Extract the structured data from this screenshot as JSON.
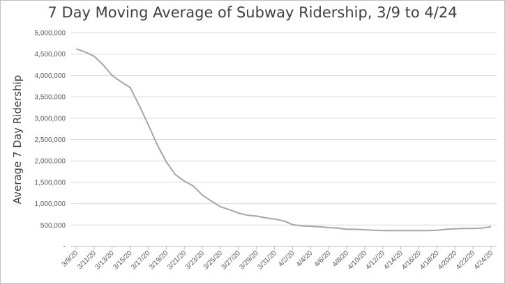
{
  "chart_data": {
    "type": "line",
    "title": "7 Day Moving Average of Subway Ridership, 3/9 to 4/24",
    "xlabel": "",
    "ylabel": "Average 7 Day Ridership",
    "ylim": [
      0,
      5000000
    ],
    "yticks": [
      0,
      500000,
      1000000,
      1500000,
      2000000,
      2500000,
      3000000,
      3500000,
      4000000,
      4500000,
      5000000
    ],
    "ytick_labels": [
      "-",
      "500,000",
      "1,000,000",
      "1,500,000",
      "2,000,000",
      "2,500,000",
      "3,000,000",
      "3,500,000",
      "4,000,000",
      "4,500,000",
      "5,000,000"
    ],
    "grid": true,
    "legend": "none",
    "line_color": "#a5a5a5",
    "x": [
      "3/9/20",
      "3/10/20",
      "3/11/20",
      "3/12/20",
      "3/13/20",
      "3/14/20",
      "3/15/20",
      "3/16/20",
      "3/17/20",
      "3/18/20",
      "3/19/20",
      "3/20/20",
      "3/21/20",
      "3/22/20",
      "3/23/20",
      "3/24/20",
      "3/25/20",
      "3/26/20",
      "3/27/20",
      "3/28/20",
      "3/29/20",
      "3/30/20",
      "3/31/20",
      "4/1/20",
      "4/2/20",
      "4/3/20",
      "4/4/20",
      "4/5/20",
      "4/6/20",
      "4/7/20",
      "4/8/20",
      "4/9/20",
      "4/10/20",
      "4/11/20",
      "4/12/20",
      "4/13/20",
      "4/14/20",
      "4/15/20",
      "4/16/20",
      "4/17/20",
      "4/18/20",
      "4/19/20",
      "4/20/20",
      "4/21/20",
      "4/22/20",
      "4/23/20",
      "4/24/20"
    ],
    "x_tick_labels": [
      "3/9/20",
      "3/11/20",
      "3/13/20",
      "3/15/20",
      "3/17/20",
      "3/19/20",
      "3/21/20",
      "3/23/20",
      "3/25/20",
      "3/27/20",
      "3/29/20",
      "3/31/20",
      "4/2/20",
      "4/4/20",
      "4/6/20",
      "4/8/20",
      "4/10/20",
      "4/12/20",
      "4/14/20",
      "4/16/20",
      "4/18/20",
      "4/20/20",
      "4/22/20",
      "4/24/20"
    ],
    "series": [
      {
        "values": [
          4620000,
          4550000,
          4450000,
          4250000,
          4000000,
          3850000,
          3720000,
          3300000,
          2850000,
          2380000,
          1980000,
          1680000,
          1530000,
          1410000,
          1200000,
          1060000,
          930000,
          860000,
          780000,
          730000,
          710000,
          670000,
          640000,
          600000,
          510000,
          480000,
          470000,
          460000,
          440000,
          430000,
          400000,
          400000,
          390000,
          380000,
          370000,
          370000,
          370000,
          370000,
          370000,
          370000,
          380000,
          400000,
          410000,
          420000,
          420000,
          430000,
          460000
        ]
      }
    ]
  }
}
